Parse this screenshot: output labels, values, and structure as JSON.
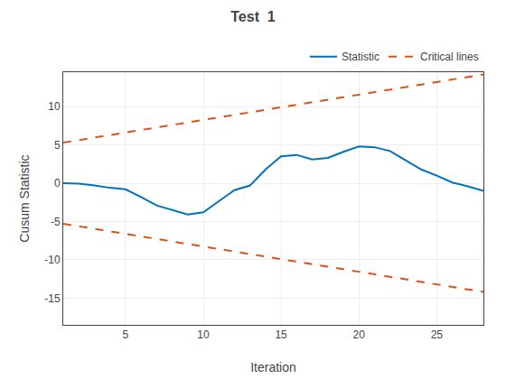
{
  "chart_data": {
    "type": "line",
    "title": "Test  1",
    "x_label": "Iteration",
    "y_label": "Cusum Statistic",
    "series": [
      {
        "name": "Statistic",
        "color": "#0072bd",
        "line_style": "solid",
        "x": [
          1,
          2,
          3,
          4,
          5,
          6,
          7,
          8,
          9,
          10,
          11,
          12,
          13,
          14,
          15,
          16,
          17,
          18,
          19,
          20,
          21,
          22,
          23,
          24,
          25,
          26,
          27,
          28
        ],
        "values": [
          0.0,
          -0.05,
          -0.3,
          -0.6,
          -0.8,
          -1.8,
          -2.9,
          -3.5,
          -4.1,
          -3.8,
          -2.4,
          -0.9,
          -0.3,
          1.8,
          3.5,
          3.7,
          3.1,
          3.3,
          4.1,
          4.8,
          4.7,
          4.2,
          3.0,
          1.8,
          1.0,
          0.1,
          -0.4,
          -1.0
        ]
      },
      {
        "name": "Critical lines",
        "color": "#d95319",
        "line_style": "dashed",
        "x": [
          1,
          28
        ],
        "values": [
          5.3,
          14.2
        ]
      },
      {
        "color": "#d95319",
        "line_style": "dashed",
        "x": [
          1,
          28
        ],
        "values": [
          -5.3,
          -14.2
        ]
      }
    ],
    "xlim": [
      1,
      28
    ],
    "ylim": [
      -18.5,
      14.5
    ],
    "xticks": [
      5,
      10,
      15,
      20,
      25
    ],
    "yticks": [
      -15,
      -10,
      -5,
      0,
      5,
      10
    ],
    "grid": true,
    "legend": "upper right"
  }
}
